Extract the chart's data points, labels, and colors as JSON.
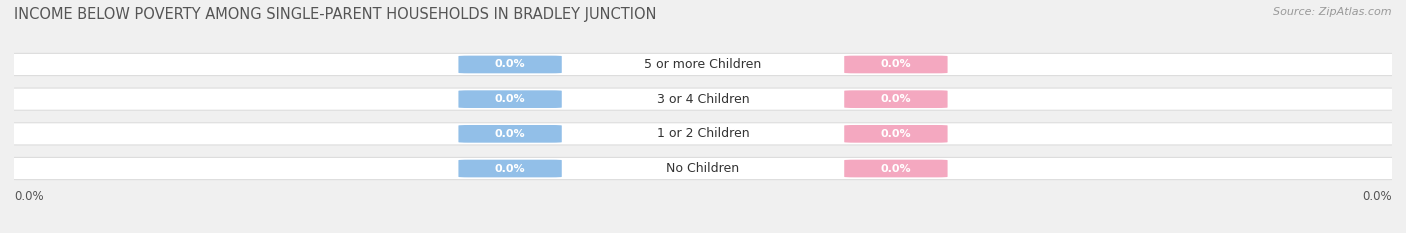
{
  "title": "INCOME BELOW POVERTY AMONG SINGLE-PARENT HOUSEHOLDS IN BRADLEY JUNCTION",
  "source": "Source: ZipAtlas.com",
  "categories": [
    "No Children",
    "1 or 2 Children",
    "3 or 4 Children",
    "5 or more Children"
  ],
  "father_values": [
    0.0,
    0.0,
    0.0,
    0.0
  ],
  "mother_values": [
    0.0,
    0.0,
    0.0,
    0.0
  ],
  "father_color": "#92bfe8",
  "mother_color": "#f4a8c0",
  "bar_bg_color": "#efefef",
  "bar_bg_edge_color": "#dddddd",
  "title_fontsize": 10.5,
  "source_fontsize": 8,
  "label_fontsize": 8.5,
  "category_fontsize": 9,
  "legend_fontsize": 9,
  "value_fontsize": 8,
  "background_color": "#f0f0f0",
  "text_color": "#555555",
  "category_text_color": "#333333"
}
